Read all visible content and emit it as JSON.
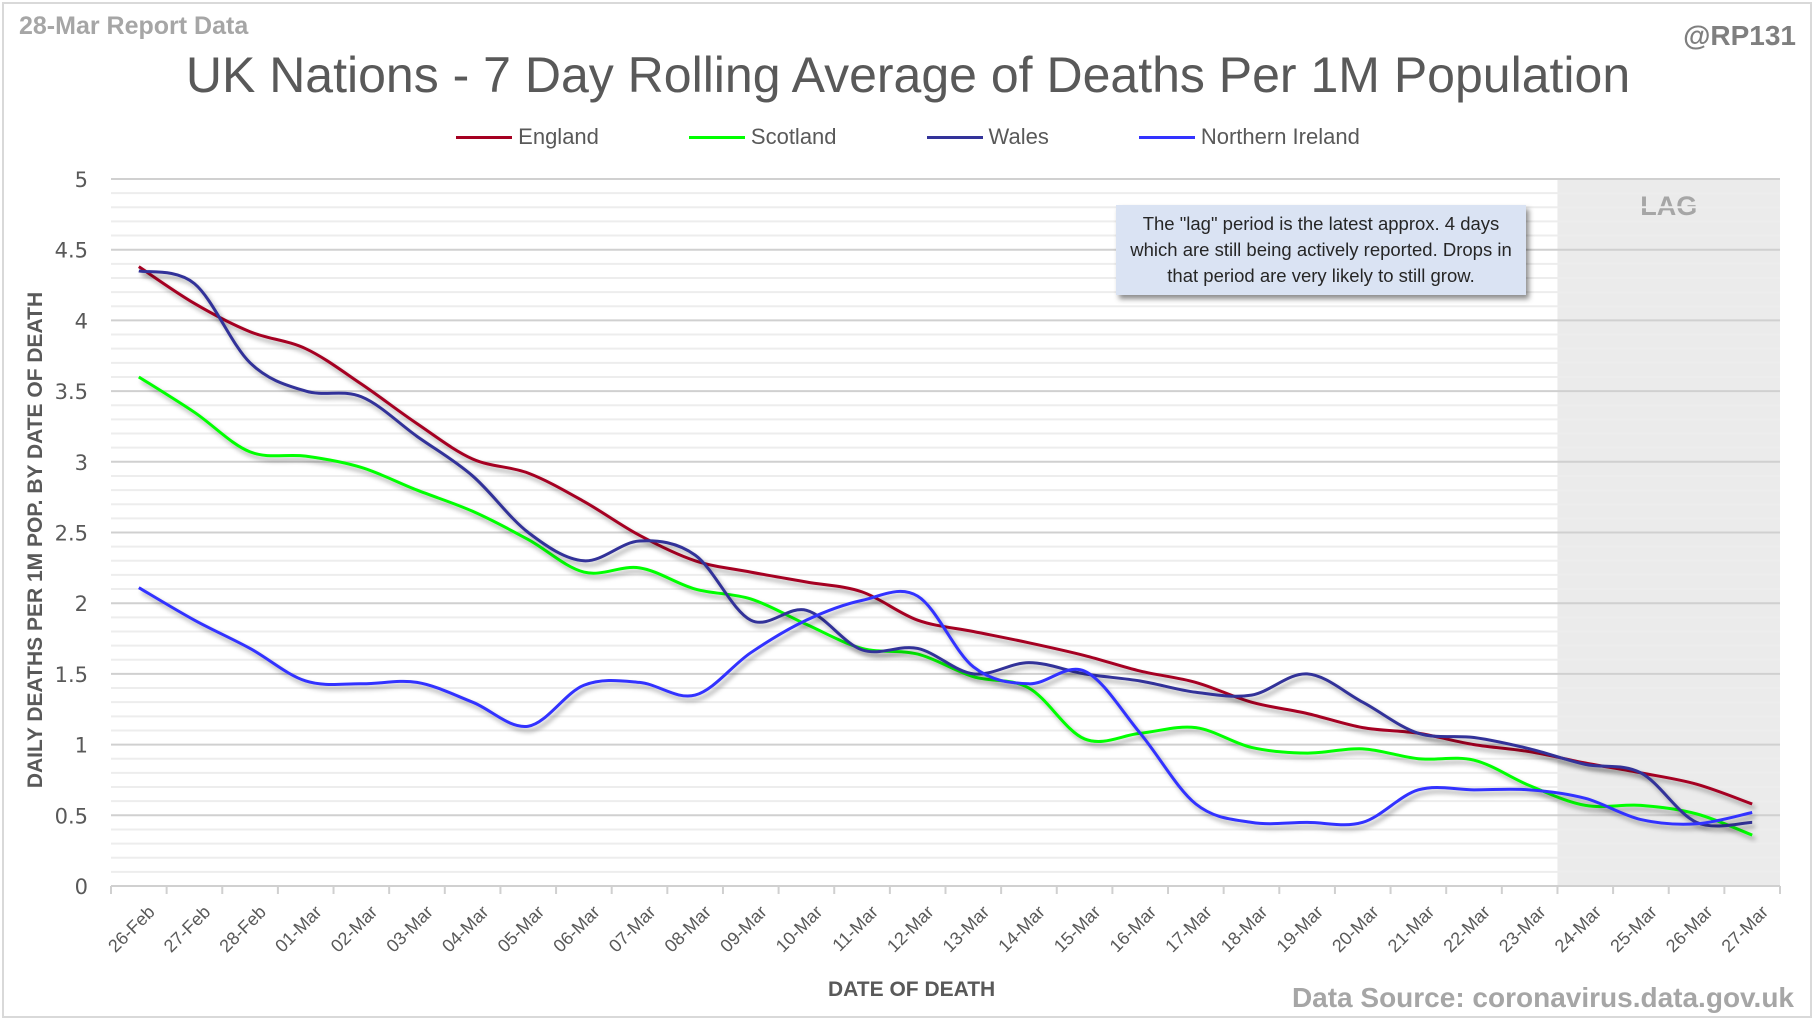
{
  "report_tag": "28-Mar Report Data",
  "handle": "@RP131",
  "source": "Data Source: coronavirus.data.gov.uk",
  "note": "The \"lag\" period is the latest approx. 4 days which are still being actively reported.  Drops in that period are very likely to still grow.",
  "lag_label": "LAG",
  "chart_data": {
    "type": "line",
    "title": "UK Nations - 7 Day Rolling Average of Deaths Per 1M Population",
    "xlabel": "DATE OF DEATH",
    "ylabel": "DAILY DEATHS PER 1M POP. BY DATE OF DEATH",
    "ylim": [
      0,
      5
    ],
    "yticks": [
      "0",
      "0.5",
      "1",
      "1.5",
      "2",
      "2.5",
      "3",
      "3.5",
      "4",
      "4.5",
      "5"
    ],
    "grid": "horizontal major and minor",
    "legend_position": "top-center",
    "lag_start": "24-Mar",
    "categories": [
      "26-Feb",
      "27-Feb",
      "28-Feb",
      "01-Mar",
      "02-Mar",
      "03-Mar",
      "04-Mar",
      "05-Mar",
      "06-Mar",
      "07-Mar",
      "08-Mar",
      "09-Mar",
      "10-Mar",
      "11-Mar",
      "12-Mar",
      "13-Mar",
      "14-Mar",
      "15-Mar",
      "16-Mar",
      "17-Mar",
      "18-Mar",
      "19-Mar",
      "20-Mar",
      "21-Mar",
      "22-Mar",
      "23-Mar",
      "24-Mar",
      "25-Mar",
      "26-Mar",
      "27-Mar"
    ],
    "series": [
      {
        "name": "England",
        "color": "#a50021",
        "values": [
          4.38,
          4.12,
          3.92,
          3.8,
          3.55,
          3.27,
          3.02,
          2.92,
          2.72,
          2.48,
          2.3,
          2.22,
          2.15,
          2.08,
          1.88,
          1.8,
          1.72,
          1.63,
          1.52,
          1.44,
          1.3,
          1.22,
          1.12,
          1.08,
          1.0,
          0.95,
          0.87,
          0.8,
          0.72,
          0.58
        ]
      },
      {
        "name": "Scotland",
        "color": "#00ff00",
        "values": [
          3.6,
          3.35,
          3.07,
          3.04,
          2.96,
          2.8,
          2.65,
          2.45,
          2.22,
          2.25,
          2.1,
          2.03,
          1.85,
          1.68,
          1.64,
          1.48,
          1.4,
          1.04,
          1.08,
          1.12,
          0.98,
          0.94,
          0.97,
          0.9,
          0.89,
          0.71,
          0.57,
          0.57,
          0.51,
          0.36
        ]
      },
      {
        "name": "Wales",
        "color": "#333399",
        "values": [
          4.35,
          4.26,
          3.7,
          3.5,
          3.46,
          3.18,
          2.9,
          2.5,
          2.3,
          2.44,
          2.34,
          1.88,
          1.95,
          1.67,
          1.68,
          1.5,
          1.58,
          1.5,
          1.45,
          1.37,
          1.35,
          1.5,
          1.3,
          1.08,
          1.05,
          0.97,
          0.86,
          0.8,
          0.45,
          0.45
        ]
      },
      {
        "name": "Northern Ireland",
        "color": "#3333ff",
        "values": [
          2.11,
          1.88,
          1.68,
          1.45,
          1.43,
          1.44,
          1.3,
          1.13,
          1.42,
          1.44,
          1.35,
          1.65,
          1.88,
          2.02,
          2.05,
          1.55,
          1.43,
          1.52,
          1.08,
          0.58,
          0.45,
          0.45,
          0.45,
          0.68,
          0.68,
          0.68,
          0.62,
          0.47,
          0.44,
          0.52
        ]
      }
    ]
  }
}
